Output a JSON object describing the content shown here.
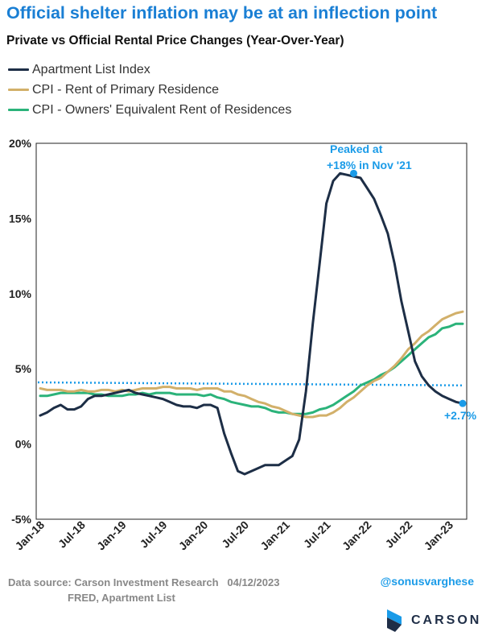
{
  "title": "Official shelter inflation may be at an inflection point",
  "subtitle": "Private vs Official Rental Price Changes (Year-Over-Year)",
  "colors": {
    "title": "#1a7fd4",
    "apartment_list": "#1d2e46",
    "cpi_rent": "#d2b06a",
    "cpi_oer": "#2bb37a",
    "annotation": "#1a9be8",
    "reference_line": "#1a9be8"
  },
  "chart_data": {
    "type": "line",
    "x": [
      "2018-01",
      "2018-02",
      "2018-03",
      "2018-04",
      "2018-05",
      "2018-06",
      "2018-07",
      "2018-08",
      "2018-09",
      "2018-10",
      "2018-11",
      "2018-12",
      "2019-01",
      "2019-02",
      "2019-03",
      "2019-04",
      "2019-05",
      "2019-06",
      "2019-07",
      "2019-08",
      "2019-09",
      "2019-10",
      "2019-11",
      "2019-12",
      "2020-01",
      "2020-02",
      "2020-03",
      "2020-04",
      "2020-05",
      "2020-06",
      "2020-07",
      "2020-08",
      "2020-09",
      "2020-10",
      "2020-11",
      "2020-12",
      "2021-01",
      "2021-02",
      "2021-03",
      "2021-04",
      "2021-05",
      "2021-06",
      "2021-07",
      "2021-08",
      "2021-09",
      "2021-10",
      "2021-11",
      "2021-12",
      "2022-01",
      "2022-02",
      "2022-03",
      "2022-04",
      "2022-05",
      "2022-06",
      "2022-07",
      "2022-08",
      "2022-09",
      "2022-10",
      "2022-11",
      "2022-12",
      "2023-01",
      "2023-02",
      "2023-03"
    ],
    "xticks": [
      "Jan-18",
      "Jul-18",
      "Jan-19",
      "Jul-19",
      "Jan-20",
      "Jul-20",
      "Jan-21",
      "Jul-21",
      "Jan-22",
      "Jul-22",
      "Jan-23"
    ],
    "yticks": [
      "20%",
      "15%",
      "10%",
      "5%",
      "0%",
      "-5%"
    ],
    "ylim": [
      -5,
      20
    ],
    "series": [
      {
        "name": "Apartment List Index",
        "color": "#1d2e46",
        "values": [
          1.9,
          2.1,
          2.4,
          2.6,
          2.3,
          2.3,
          2.5,
          3.0,
          3.2,
          3.2,
          3.3,
          3.4,
          3.5,
          3.6,
          3.4,
          3.3,
          3.2,
          3.1,
          3.0,
          2.8,
          2.6,
          2.5,
          2.5,
          2.4,
          2.6,
          2.6,
          2.4,
          0.7,
          -0.6,
          -1.8,
          -2.0,
          -1.8,
          -1.6,
          -1.4,
          -1.4,
          -1.4,
          -1.1,
          -0.8,
          0.3,
          3.5,
          8.0,
          12.0,
          16.0,
          17.5,
          18.0,
          17.9,
          17.8,
          17.7,
          17.0,
          16.3,
          15.2,
          14.0,
          12.0,
          9.5,
          7.5,
          5.5,
          4.5,
          3.9,
          3.5,
          3.2,
          3.0,
          2.8,
          2.7
        ]
      },
      {
        "name": "CPI - Rent of Primary Residence",
        "color": "#d2b06a",
        "values": [
          3.7,
          3.6,
          3.6,
          3.6,
          3.5,
          3.5,
          3.6,
          3.5,
          3.5,
          3.6,
          3.6,
          3.5,
          3.6,
          3.5,
          3.6,
          3.7,
          3.7,
          3.7,
          3.8,
          3.8,
          3.7,
          3.7,
          3.7,
          3.6,
          3.7,
          3.7,
          3.7,
          3.5,
          3.5,
          3.3,
          3.2,
          3.0,
          2.8,
          2.7,
          2.5,
          2.4,
          2.2,
          2.0,
          1.9,
          1.8,
          1.8,
          1.9,
          1.9,
          2.1,
          2.4,
          2.8,
          3.1,
          3.5,
          3.9,
          4.2,
          4.4,
          4.8,
          5.2,
          5.7,
          6.3,
          6.7,
          7.2,
          7.5,
          7.9,
          8.3,
          8.5,
          8.7,
          8.8
        ]
      },
      {
        "name": "CPI - Owners' Equivalent Rent of Residences",
        "color": "#2bb37a",
        "values": [
          3.2,
          3.2,
          3.3,
          3.4,
          3.4,
          3.4,
          3.4,
          3.4,
          3.3,
          3.3,
          3.2,
          3.2,
          3.2,
          3.3,
          3.3,
          3.4,
          3.3,
          3.4,
          3.4,
          3.4,
          3.3,
          3.3,
          3.3,
          3.3,
          3.2,
          3.3,
          3.1,
          3.0,
          2.8,
          2.7,
          2.6,
          2.5,
          2.5,
          2.4,
          2.2,
          2.1,
          2.1,
          2.0,
          2.0,
          2.0,
          2.1,
          2.3,
          2.4,
          2.6,
          2.9,
          3.2,
          3.5,
          3.9,
          4.1,
          4.3,
          4.6,
          4.8,
          5.1,
          5.5,
          5.9,
          6.3,
          6.7,
          7.1,
          7.3,
          7.7,
          7.8,
          8.0,
          8.0
        ]
      }
    ],
    "reference_line": {
      "y_start": 4.1,
      "y_end": 3.9,
      "style": "dotted"
    },
    "annotations": [
      {
        "label_lines": [
          "Peaked at",
          "+18% in Nov '21"
        ],
        "x": "2021-11",
        "y": 18.0
      },
      {
        "label_lines": [
          "+2.7%"
        ],
        "x": "2023-03",
        "y": 2.7
      }
    ],
    "legend_placement": "top-left"
  },
  "footer": {
    "source_lines": [
      "Data source: Carson Investment Research   04/12/2023",
      "FRED, Apartment List"
    ],
    "handle": "@sonusvarghese",
    "logo_text": "CARSON"
  }
}
